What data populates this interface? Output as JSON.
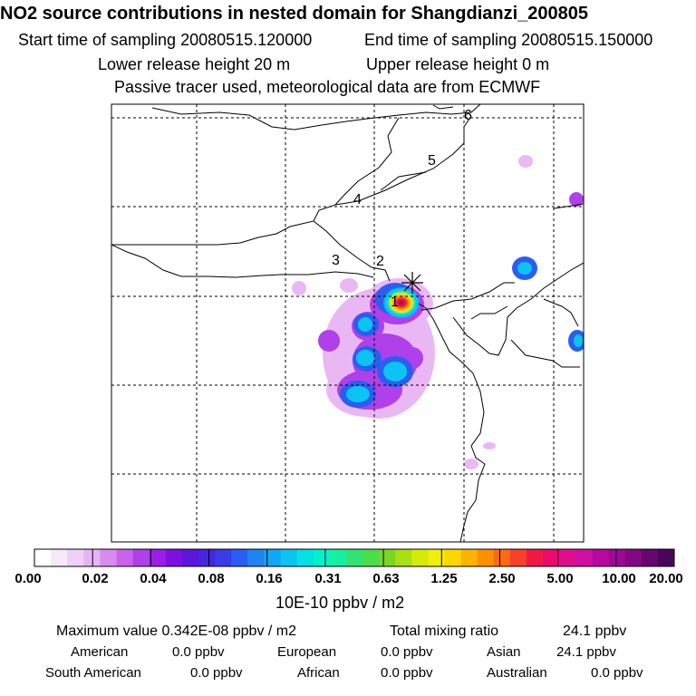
{
  "header": {
    "title": "NO2 source contributions in nested domain for Shangdianzi_200805",
    "start_label": "Start time of sampling 20080515.120000",
    "end_label": "End time of sampling 20080515.150000",
    "lower_label": "Lower release height   20 m",
    "upper_label": "Upper release height    0 m",
    "note": "Passive tracer used, meteorological data are from ECMWF"
  },
  "chart_data": {
    "type": "heatmap",
    "title": "NO2 source contributions in nested domain for Shangdianzi_200805",
    "trajectory_labels": [
      "1",
      "2",
      "3",
      "4",
      "5",
      "6"
    ],
    "colorbar": {
      "tick_labels": [
        "0.00",
        "0.02",
        "0.04",
        "0.08",
        "0.16",
        "0.31",
        "0.63",
        "1.25",
        "2.50",
        "5.00",
        "10.00",
        "20.00"
      ],
      "unit": "10E-10 ppbv / m2",
      "colors": [
        "#ffffff",
        "#f7e8fb",
        "#f0d0f8",
        "#e6b4f4",
        "#d88cf0",
        "#c864ec",
        "#b040ea",
        "#9a1fe6",
        "#7d10e0",
        "#5e16dc",
        "#4626e0",
        "#3a3ce8",
        "#2a5ef0",
        "#1e84f4",
        "#12a6f6",
        "#0cc4f2",
        "#04e0e6",
        "#00f2cc",
        "#14f0a0",
        "#30e474",
        "#4ade4a",
        "#7ad624",
        "#a8e012",
        "#d6ea0a",
        "#f2ee08",
        "#fcd800",
        "#fcb400",
        "#fc9000",
        "#fc6a14",
        "#f8402a",
        "#f21846",
        "#ec0a6e",
        "#e20c8e",
        "#d010a2",
        "#b808a0",
        "#9e0896",
        "#820884",
        "#660670",
        "#4a045a"
      ]
    }
  },
  "footer": {
    "max_label": "Maximum value  0.342E-08 ppbv / m2",
    "total_label": "Total mixing ratio",
    "total_value": "24.1 ppbv",
    "regions": [
      {
        "name": "American",
        "value": "0.0 ppbv"
      },
      {
        "name": "European",
        "value": "0.0 ppbv"
      },
      {
        "name": "Asian",
        "value": "24.1 ppbv"
      },
      {
        "name": "South American",
        "value": "0.0 ppbv"
      },
      {
        "name": "African",
        "value": "0.0 ppbv"
      },
      {
        "name": "Australian",
        "value": "0.0 ppbv"
      }
    ]
  }
}
